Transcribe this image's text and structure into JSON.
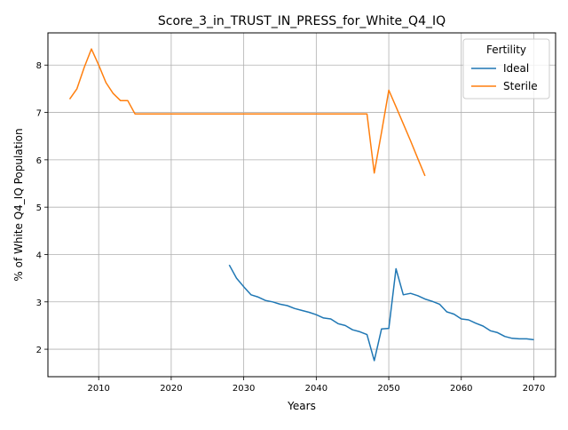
{
  "chart_data": {
    "type": "line",
    "title": "Score_3_in_TRUST_IN_PRESS_for_White_Q4_IQ",
    "xlabel": "Years",
    "ylabel": "% of White Q4_IQ Population",
    "xlim": [
      2003,
      2073
    ],
    "ylim": [
      1.42,
      8.68
    ],
    "xticks": [
      2010,
      2020,
      2030,
      2040,
      2050,
      2060,
      2070
    ],
    "yticks": [
      2,
      3,
      4,
      5,
      6,
      7,
      8
    ],
    "grid": true,
    "legend": {
      "title": "Fertility",
      "placement": "top-right"
    },
    "series": [
      {
        "name": "Ideal",
        "color": "#1f77b4",
        "x": [
          2028,
          2029,
          2030,
          2031,
          2032,
          2033,
          2034,
          2035,
          2036,
          2037,
          2038,
          2039,
          2040,
          2041,
          2042,
          2043,
          2044,
          2045,
          2046,
          2047,
          2048,
          2049,
          2050,
          2051,
          2052,
          2053,
          2054,
          2055,
          2056,
          2057,
          2058,
          2059,
          2060,
          2061,
          2062,
          2063,
          2064,
          2065,
          2066,
          2067,
          2068,
          2069,
          2070
        ],
        "values": [
          3.78,
          3.5,
          3.32,
          3.15,
          3.1,
          3.03,
          3.0,
          2.95,
          2.92,
          2.86,
          2.82,
          2.78,
          2.73,
          2.66,
          2.64,
          2.54,
          2.5,
          2.41,
          2.37,
          2.31,
          1.76,
          2.43,
          2.44,
          3.7,
          3.15,
          3.18,
          3.13,
          3.06,
          3.01,
          2.95,
          2.79,
          2.74,
          2.64,
          2.62,
          2.55,
          2.49,
          2.39,
          2.35,
          2.27,
          2.23,
          2.22,
          2.22,
          2.2
        ]
      },
      {
        "name": "Sterile",
        "color": "#ff7f0e",
        "x": [
          2006,
          2007,
          2008,
          2009,
          2010,
          2011,
          2012,
          2013,
          2014,
          2015,
          2016,
          2017,
          2018,
          2019,
          2020,
          2021,
          2022,
          2023,
          2024,
          2025,
          2026,
          2027,
          2028,
          2029,
          2030,
          2031,
          2032,
          2033,
          2034,
          2035,
          2036,
          2037,
          2038,
          2039,
          2040,
          2041,
          2042,
          2043,
          2044,
          2045,
          2046,
          2047,
          2048,
          2049,
          2050,
          2051,
          2052,
          2053,
          2054,
          2055
        ],
        "values": [
          7.28,
          7.5,
          7.95,
          8.34,
          8.0,
          7.63,
          7.4,
          7.25,
          7.25,
          6.97,
          6.97,
          6.97,
          6.97,
          6.97,
          6.97,
          6.97,
          6.97,
          6.97,
          6.97,
          6.97,
          6.97,
          6.97,
          6.97,
          6.97,
          6.97,
          6.97,
          6.97,
          6.97,
          6.97,
          6.97,
          6.97,
          6.97,
          6.97,
          6.97,
          6.97,
          6.97,
          6.97,
          6.97,
          6.97,
          6.97,
          6.97,
          6.97,
          5.72,
          6.58,
          7.47,
          7.12,
          6.76,
          6.4,
          6.03,
          5.66
        ]
      }
    ]
  }
}
